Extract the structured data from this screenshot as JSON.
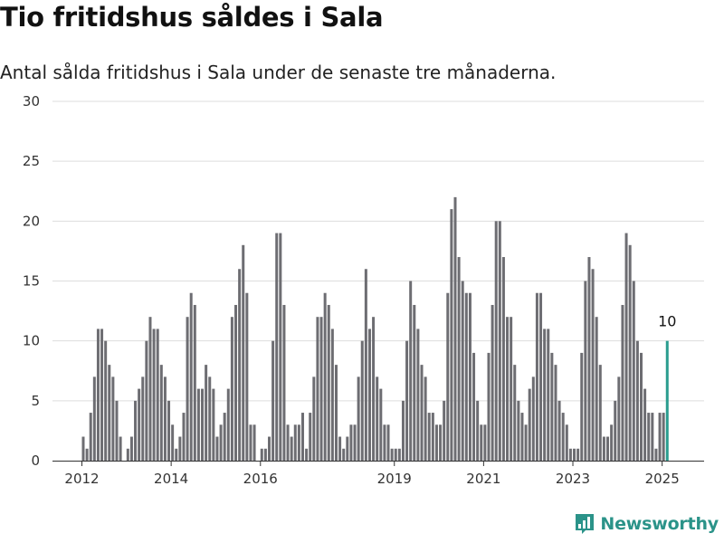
{
  "title": "Tio fritidshus såldes i Sala",
  "subtitle": "Antal sålda fritidshus i Sala under de senaste tre månaderna.",
  "brand": {
    "name": "Newsworthy"
  },
  "colors": {
    "bar": "#6d6d72",
    "highlight": "#2a9d8f",
    "grid": "#dddddd",
    "axis": "#333333",
    "brand": "#2b9389"
  },
  "chart_data": {
    "type": "bar",
    "ylim": [
      0,
      30
    ],
    "yticks": [
      "0",
      "5",
      "10",
      "15",
      "20",
      "25",
      "30"
    ],
    "xticks": [
      "2012",
      "2014",
      "2016",
      "2019",
      "2021",
      "2023",
      "2025"
    ],
    "grid": true,
    "annotation": "10",
    "first_year": 2012,
    "values": [
      2,
      1,
      4,
      7,
      11,
      11,
      10,
      8,
      7,
      5,
      2,
      0,
      1,
      2,
      5,
      6,
      7,
      10,
      12,
      11,
      11,
      8,
      7,
      5,
      3,
      1,
      2,
      4,
      12,
      14,
      13,
      6,
      6,
      8,
      7,
      6,
      2,
      3,
      4,
      6,
      12,
      13,
      16,
      18,
      14,
      3,
      3,
      0,
      1,
      1,
      2,
      10,
      19,
      19,
      13,
      3,
      2,
      3,
      3,
      4,
      1,
      4,
      7,
      12,
      12,
      14,
      13,
      11,
      8,
      2,
      1,
      2,
      3,
      3,
      7,
      10,
      16,
      11,
      12,
      7,
      6,
      3,
      3,
      1,
      1,
      1,
      5,
      10,
      15,
      13,
      11,
      8,
      7,
      4,
      4,
      3,
      3,
      5,
      14,
      21,
      22,
      17,
      15,
      14,
      14,
      9,
      5,
      3,
      3,
      9,
      13,
      20,
      20,
      17,
      12,
      12,
      8,
      5,
      4,
      3,
      6,
      7,
      14,
      14,
      11,
      11,
      9,
      8,
      5,
      4,
      3,
      1,
      1,
      1,
      9,
      15,
      17,
      16,
      12,
      8,
      2,
      2,
      3,
      5,
      7,
      13,
      19,
      18,
      15,
      10,
      9,
      6,
      4,
      4,
      1,
      4,
      4,
      10
    ]
  }
}
